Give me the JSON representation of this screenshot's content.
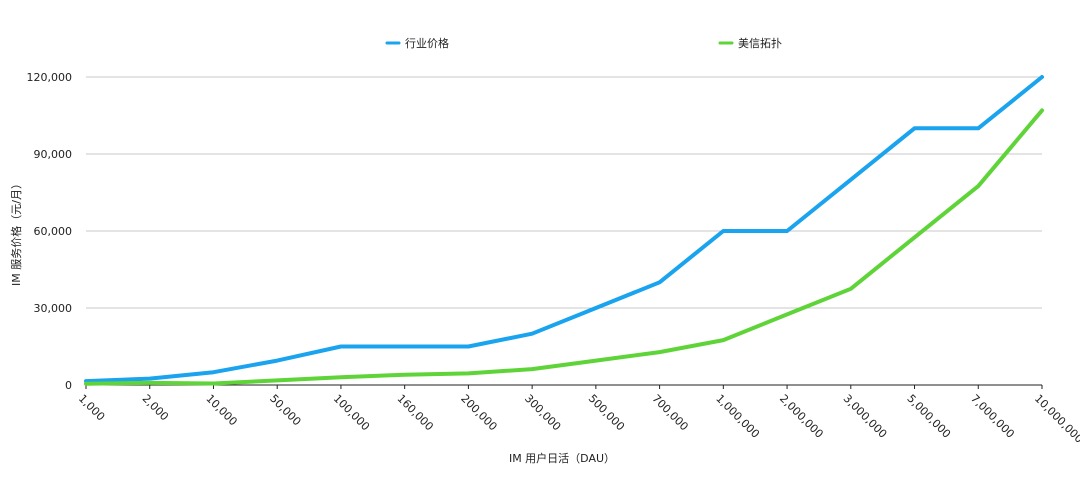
{
  "chart_data": {
    "type": "line",
    "title": "",
    "xlabel": "IM 用户日活（DAU）",
    "ylabel": "IM 服务价格（元/月）",
    "categories": [
      "1,000",
      "2,000",
      "10,000",
      "50,000",
      "100,000",
      "160,000",
      "200,000",
      "300,000",
      "500,000",
      "700,000",
      "1,000,000",
      "2,000,000",
      "3,000,000",
      "5,000,000",
      "7,000,000",
      "10,000,000"
    ],
    "ylim": [
      0,
      120000
    ],
    "yticks": [
      0,
      30000,
      60000,
      90000,
      120000
    ],
    "ytick_labels": [
      "0",
      "30,000",
      "60,000",
      "90,000",
      "120,000"
    ],
    "grid": true,
    "legend_position": "top",
    "series": [
      {
        "name": "行业价格",
        "color": "#1aa3ee",
        "values": [
          1500,
          2500,
          5000,
          9500,
          15000,
          15000,
          15000,
          20000,
          30000,
          40000,
          60000,
          60000,
          80000,
          100000,
          100000,
          120000
        ]
      },
      {
        "name": "美信拓扑",
        "color": "#5ed438",
        "values": [
          500,
          800,
          600,
          1800,
          3000,
          4000,
          4500,
          6200,
          9500,
          12800,
          17500,
          27500,
          37500,
          57500,
          77500,
          107000
        ]
      }
    ]
  }
}
